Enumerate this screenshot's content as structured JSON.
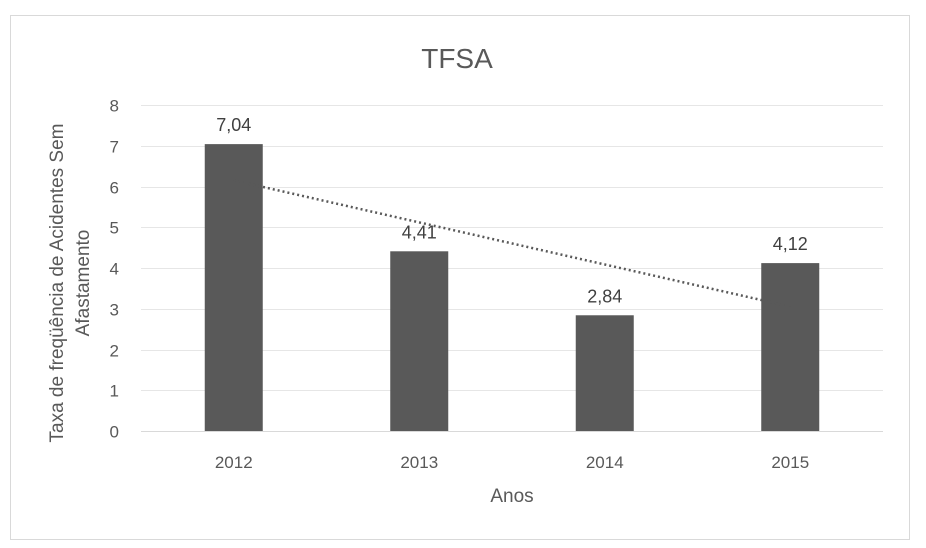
{
  "chart_data": {
    "type": "bar",
    "title": "TFSA",
    "xlabel": "Anos",
    "ylabel_lines": [
      "Taxa de freqüência de Acidentes Sem",
      "Afastamento"
    ],
    "categories": [
      "2012",
      "2013",
      "2014",
      "2015"
    ],
    "values": [
      7.04,
      4.41,
      2.84,
      4.12
    ],
    "data_labels": [
      "7,04",
      "4,41",
      "2,84",
      "4,12"
    ],
    "ylim": [
      0,
      8
    ],
    "yticks": [
      0,
      1,
      2,
      3,
      4,
      5,
      6,
      7,
      8
    ],
    "grid": true,
    "legend": "none",
    "bar_color": "#595959",
    "trendline": {
      "type": "linear",
      "style": "dotted",
      "color": "#595959"
    }
  }
}
